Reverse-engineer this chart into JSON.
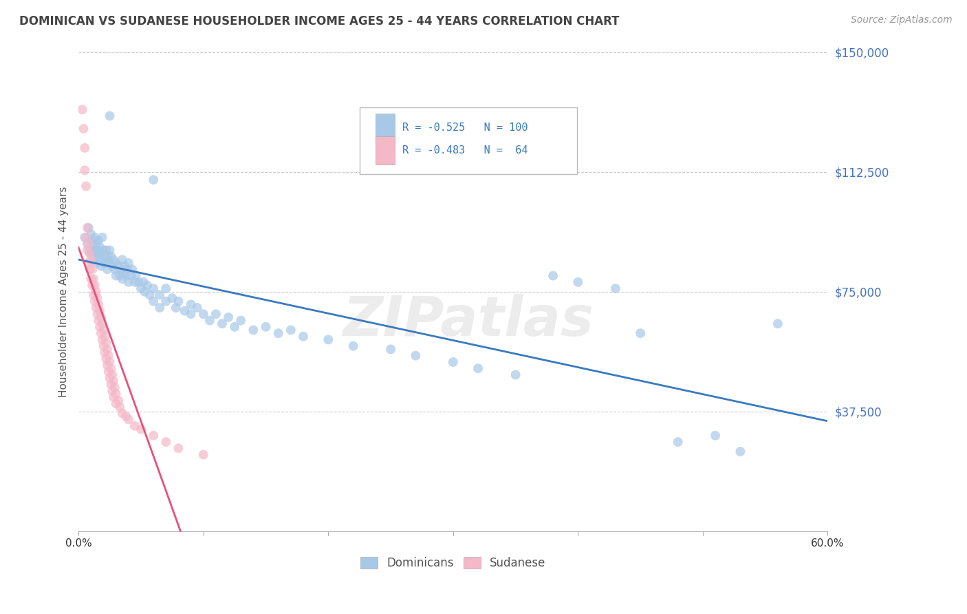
{
  "title": "DOMINICAN VS SUDANESE HOUSEHOLDER INCOME AGES 25 - 44 YEARS CORRELATION CHART",
  "source": "Source: ZipAtlas.com",
  "ylabel": "Householder Income Ages 25 - 44 years",
  "xlim": [
    0.0,
    0.6
  ],
  "ylim": [
    0,
    150000
  ],
  "xtick_positions": [
    0.0,
    0.1,
    0.2,
    0.3,
    0.4,
    0.5,
    0.6
  ],
  "xticklabels": [
    "0.0%",
    "",
    "",
    "",
    "",
    "",
    "60.0%"
  ],
  "ytick_labels_right": [
    "$150,000",
    "$112,500",
    "$75,000",
    "$37,500"
  ],
  "ytick_vals_right": [
    150000,
    112500,
    75000,
    37500
  ],
  "blue_color": "#a8c8e8",
  "pink_color": "#f4b8c8",
  "blue_line_color": "#3a7abf",
  "pink_line_color": "#e8507a",
  "blue_R": -0.525,
  "blue_N": 100,
  "pink_R": -0.483,
  "pink_N": 64,
  "dominican_label": "Dominicans",
  "sudanese_label": "Sudanese",
  "background_color": "#ffffff",
  "grid_color": "#cccccc",
  "watermark": "ZIPatlas",
  "blue_scatter": [
    [
      0.005,
      92000
    ],
    [
      0.007,
      90000
    ],
    [
      0.008,
      95000
    ],
    [
      0.009,
      88000
    ],
    [
      0.01,
      93000
    ],
    [
      0.01,
      87000
    ],
    [
      0.011,
      91000
    ],
    [
      0.012,
      89000
    ],
    [
      0.012,
      85000
    ],
    [
      0.013,
      92000
    ],
    [
      0.013,
      88000
    ],
    [
      0.014,
      90000
    ],
    [
      0.014,
      86000
    ],
    [
      0.015,
      88000
    ],
    [
      0.015,
      84000
    ],
    [
      0.016,
      91000
    ],
    [
      0.016,
      87000
    ],
    [
      0.017,
      89000
    ],
    [
      0.017,
      85000
    ],
    [
      0.018,
      87000
    ],
    [
      0.018,
      83000
    ],
    [
      0.019,
      92000
    ],
    [
      0.02,
      88000
    ],
    [
      0.02,
      84000
    ],
    [
      0.021,
      86000
    ],
    [
      0.022,
      88000
    ],
    [
      0.022,
      84000
    ],
    [
      0.023,
      86000
    ],
    [
      0.023,
      82000
    ],
    [
      0.025,
      130000
    ],
    [
      0.025,
      88000
    ],
    [
      0.025,
      84000
    ],
    [
      0.026,
      86000
    ],
    [
      0.027,
      83000
    ],
    [
      0.028,
      85000
    ],
    [
      0.029,
      82000
    ],
    [
      0.03,
      84000
    ],
    [
      0.03,
      80000
    ],
    [
      0.032,
      83000
    ],
    [
      0.033,
      80000
    ],
    [
      0.034,
      82000
    ],
    [
      0.035,
      85000
    ],
    [
      0.035,
      79000
    ],
    [
      0.036,
      81000
    ],
    [
      0.037,
      83000
    ],
    [
      0.038,
      80000
    ],
    [
      0.039,
      82000
    ],
    [
      0.04,
      84000
    ],
    [
      0.04,
      78000
    ],
    [
      0.042,
      80000
    ],
    [
      0.043,
      82000
    ],
    [
      0.045,
      78000
    ],
    [
      0.046,
      80000
    ],
    [
      0.048,
      78000
    ],
    [
      0.05,
      76000
    ],
    [
      0.052,
      78000
    ],
    [
      0.053,
      75000
    ],
    [
      0.055,
      77000
    ],
    [
      0.057,
      74000
    ],
    [
      0.06,
      110000
    ],
    [
      0.06,
      76000
    ],
    [
      0.06,
      72000
    ],
    [
      0.065,
      74000
    ],
    [
      0.065,
      70000
    ],
    [
      0.07,
      76000
    ],
    [
      0.07,
      72000
    ],
    [
      0.075,
      73000
    ],
    [
      0.078,
      70000
    ],
    [
      0.08,
      72000
    ],
    [
      0.085,
      69000
    ],
    [
      0.09,
      71000
    ],
    [
      0.09,
      68000
    ],
    [
      0.095,
      70000
    ],
    [
      0.1,
      68000
    ],
    [
      0.105,
      66000
    ],
    [
      0.11,
      68000
    ],
    [
      0.115,
      65000
    ],
    [
      0.12,
      67000
    ],
    [
      0.125,
      64000
    ],
    [
      0.13,
      66000
    ],
    [
      0.14,
      63000
    ],
    [
      0.15,
      64000
    ],
    [
      0.16,
      62000
    ],
    [
      0.17,
      63000
    ],
    [
      0.18,
      61000
    ],
    [
      0.2,
      60000
    ],
    [
      0.22,
      58000
    ],
    [
      0.25,
      57000
    ],
    [
      0.27,
      55000
    ],
    [
      0.3,
      53000
    ],
    [
      0.32,
      51000
    ],
    [
      0.35,
      49000
    ],
    [
      0.38,
      80000
    ],
    [
      0.4,
      78000
    ],
    [
      0.43,
      76000
    ],
    [
      0.45,
      62000
    ],
    [
      0.48,
      28000
    ],
    [
      0.51,
      30000
    ],
    [
      0.53,
      25000
    ],
    [
      0.56,
      65000
    ]
  ],
  "sudanese_scatter": [
    [
      0.003,
      132000
    ],
    [
      0.004,
      126000
    ],
    [
      0.005,
      120000
    ],
    [
      0.005,
      113000
    ],
    [
      0.006,
      108000
    ],
    [
      0.006,
      92000
    ],
    [
      0.007,
      95000
    ],
    [
      0.007,
      88000
    ],
    [
      0.008,
      90000
    ],
    [
      0.008,
      84000
    ],
    [
      0.009,
      87000
    ],
    [
      0.009,
      82000
    ],
    [
      0.01,
      85000
    ],
    [
      0.01,
      79000
    ],
    [
      0.011,
      82000
    ],
    [
      0.011,
      77000
    ],
    [
      0.012,
      79000
    ],
    [
      0.012,
      74000
    ],
    [
      0.013,
      77000
    ],
    [
      0.013,
      72000
    ],
    [
      0.014,
      75000
    ],
    [
      0.014,
      70000
    ],
    [
      0.015,
      73000
    ],
    [
      0.015,
      68000
    ],
    [
      0.016,
      71000
    ],
    [
      0.016,
      66000
    ],
    [
      0.017,
      69000
    ],
    [
      0.017,
      64000
    ],
    [
      0.018,
      67000
    ],
    [
      0.018,
      62000
    ],
    [
      0.019,
      65000
    ],
    [
      0.019,
      60000
    ],
    [
      0.02,
      63000
    ],
    [
      0.02,
      58000
    ],
    [
      0.021,
      61000
    ],
    [
      0.021,
      56000
    ],
    [
      0.022,
      59000
    ],
    [
      0.022,
      54000
    ],
    [
      0.023,
      57000
    ],
    [
      0.023,
      52000
    ],
    [
      0.024,
      55000
    ],
    [
      0.024,
      50000
    ],
    [
      0.025,
      53000
    ],
    [
      0.025,
      48000
    ],
    [
      0.026,
      51000
    ],
    [
      0.026,
      46000
    ],
    [
      0.027,
      49000
    ],
    [
      0.027,
      44000
    ],
    [
      0.028,
      47000
    ],
    [
      0.028,
      42000
    ],
    [
      0.029,
      45000
    ],
    [
      0.03,
      43000
    ],
    [
      0.03,
      40000
    ],
    [
      0.032,
      41000
    ],
    [
      0.033,
      39000
    ],
    [
      0.035,
      37000
    ],
    [
      0.038,
      36000
    ],
    [
      0.04,
      35000
    ],
    [
      0.045,
      33000
    ],
    [
      0.05,
      32000
    ],
    [
      0.06,
      30000
    ],
    [
      0.07,
      28000
    ],
    [
      0.08,
      26000
    ],
    [
      0.1,
      24000
    ]
  ]
}
